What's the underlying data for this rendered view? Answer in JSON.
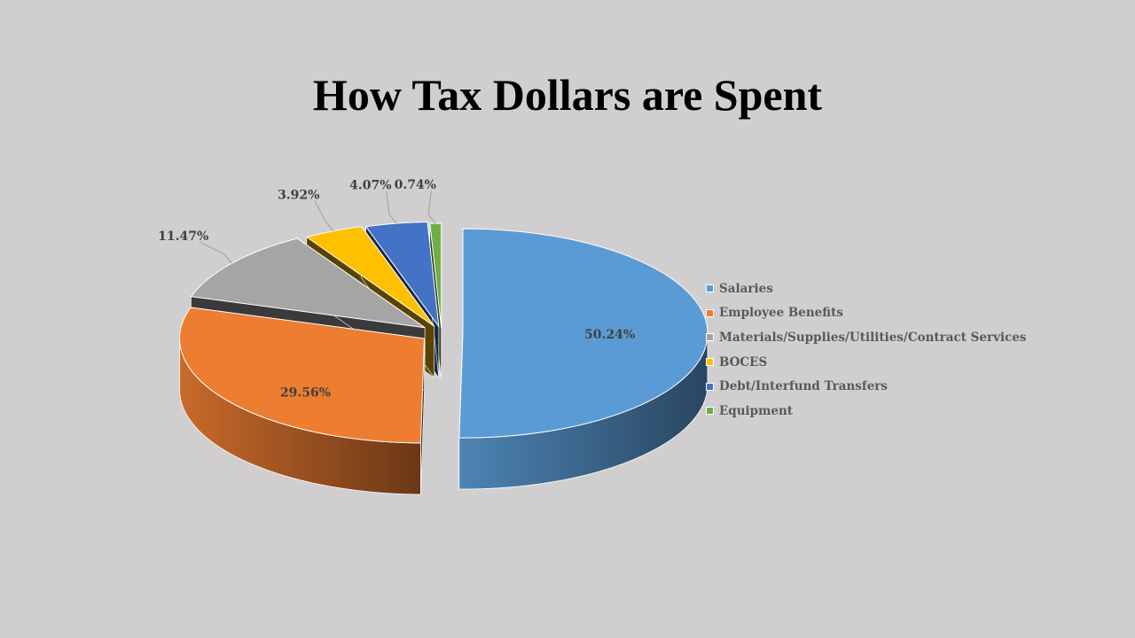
{
  "chart_data": {
    "type": "pie",
    "title": "How Tax Dollars are Spent",
    "categories": [
      "Salaries",
      "Employee Benefits",
      "Materials/Supplies/Utilities/Contract Services",
      "BOCES",
      "Debt/Interfund Transfers",
      "Equipment"
    ],
    "values": [
      50.24,
      29.56,
      11.47,
      3.92,
      4.07,
      0.74
    ],
    "labels": [
      "50.24%",
      "29.56%",
      "11.47%",
      "3.92%",
      "4.07%",
      "0.74%"
    ],
    "colors": [
      "#5b9bd5",
      "#ed7d31",
      "#a5a5a5",
      "#ffc000",
      "#4472c4",
      "#70ad47"
    ],
    "style": "3d-exploded",
    "legend_position": "right"
  }
}
